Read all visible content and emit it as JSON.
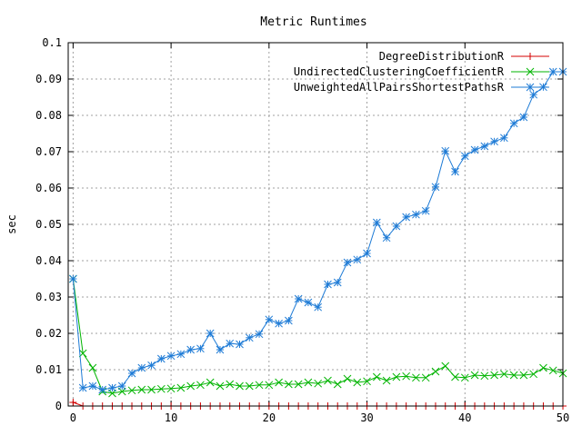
{
  "chart_data": {
    "type": "line",
    "title": "Metric Runtimes",
    "xlabel": "",
    "ylabel": "sec",
    "xlim": [
      -0.5,
      50
    ],
    "ylim": [
      0,
      0.1
    ],
    "x_ticks": [
      0,
      10,
      20,
      30,
      40,
      50
    ],
    "x_tick_labels": [
      "0",
      "10",
      "20",
      "30",
      "40",
      "50"
    ],
    "y_ticks": [
      0,
      0.01,
      0.02,
      0.03,
      0.04,
      0.05,
      0.06,
      0.07,
      0.08,
      0.09,
      0.1
    ],
    "y_tick_labels": [
      "0",
      "0.01",
      "0.02",
      "0.03",
      "0.04",
      "0.05",
      "0.06",
      "0.07",
      "0.08",
      "0.09",
      "0.1"
    ],
    "grid": true,
    "legend_position": "top-right",
    "x": [
      0,
      1,
      2,
      3,
      4,
      5,
      6,
      7,
      8,
      9,
      10,
      11,
      12,
      13,
      14,
      15,
      16,
      17,
      18,
      19,
      20,
      21,
      22,
      23,
      24,
      25,
      26,
      27,
      28,
      29,
      30,
      31,
      32,
      33,
      34,
      35,
      36,
      37,
      38,
      39,
      40,
      41,
      42,
      43,
      44,
      45,
      46,
      47,
      48,
      49,
      50
    ],
    "series": [
      {
        "name": "DegreeDistributionR",
        "color": "#d40000",
        "marker": "plus",
        "values": [
          0.001,
          0,
          0,
          0,
          0,
          0,
          0,
          0,
          0,
          0,
          0,
          0,
          0,
          0,
          0,
          0,
          0,
          0,
          0,
          0,
          0,
          0,
          0,
          0,
          0,
          0,
          0,
          0,
          0,
          0,
          0,
          0,
          0,
          0,
          0,
          0,
          0,
          0,
          0,
          0,
          0,
          0,
          0,
          0,
          0,
          0,
          0,
          0,
          0,
          0,
          0
        ]
      },
      {
        "name": "UndirectedClusteringCoefficientR",
        "color": "#00b400",
        "marker": "cross",
        "values": [
          0.035,
          0.0145,
          0.0105,
          0.004,
          0.0035,
          0.004,
          0.0043,
          0.0045,
          0.0045,
          0.0047,
          0.0048,
          0.005,
          0.0055,
          0.0058,
          0.0065,
          0.0055,
          0.006,
          0.0055,
          0.0055,
          0.0058,
          0.0058,
          0.0065,
          0.006,
          0.006,
          0.0065,
          0.0062,
          0.007,
          0.006,
          0.0075,
          0.0065,
          0.0068,
          0.008,
          0.007,
          0.008,
          0.0082,
          0.0078,
          0.0078,
          0.0095,
          0.011,
          0.008,
          0.0078,
          0.0085,
          0.0083,
          0.0085,
          0.0088,
          0.0085,
          0.0085,
          0.0088,
          0.0105,
          0.0098,
          0.009
        ]
      },
      {
        "name": "UnweightedAllPairsShortestPathsR",
        "color": "#1e7bd6",
        "marker": "star",
        "values": [
          0.035,
          0.005,
          0.0055,
          0.0045,
          0.005,
          0.0055,
          0.009,
          0.0105,
          0.0112,
          0.013,
          0.0138,
          0.0143,
          0.0155,
          0.0158,
          0.02,
          0.0155,
          0.0172,
          0.017,
          0.0188,
          0.0198,
          0.0238,
          0.0227,
          0.0235,
          0.0295,
          0.0285,
          0.0272,
          0.0335,
          0.034,
          0.0395,
          0.0403,
          0.042,
          0.0505,
          0.0463,
          0.0495,
          0.052,
          0.0527,
          0.0537,
          0.0603,
          0.0702,
          0.0645,
          0.0688,
          0.0705,
          0.0715,
          0.0728,
          0.0738,
          0.0778,
          0.0795,
          0.0857,
          0.0878,
          0.092,
          0.092
        ]
      }
    ]
  }
}
